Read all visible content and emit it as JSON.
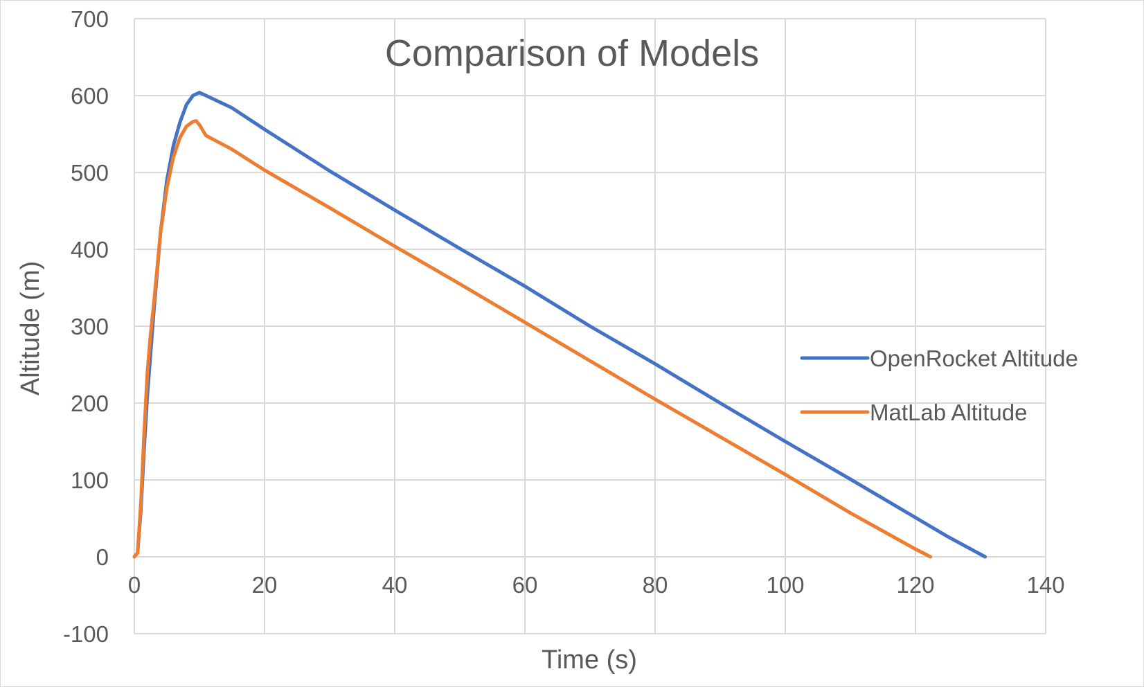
{
  "chart_data": {
    "type": "line",
    "title": "Comparison of Models",
    "xlabel": "Time (s)",
    "ylabel": "Altitude (m)",
    "xlim": [
      0,
      140
    ],
    "ylim": [
      -100,
      700
    ],
    "xticks": [
      0,
      20,
      40,
      60,
      80,
      100,
      120,
      140
    ],
    "yticks": [
      -100,
      0,
      100,
      200,
      300,
      400,
      500,
      600,
      700
    ],
    "grid": true,
    "legend": "right",
    "series": [
      {
        "name": "OpenRocket Altitude",
        "color": "#4472c4",
        "points": [
          [
            0,
            0
          ],
          [
            0.5,
            5
          ],
          [
            1,
            60
          ],
          [
            1.5,
            140
          ],
          [
            2,
            210
          ],
          [
            3,
            320
          ],
          [
            4,
            420
          ],
          [
            5,
            490
          ],
          [
            6,
            535
          ],
          [
            7,
            565
          ],
          [
            8,
            588
          ],
          [
            9,
            600
          ],
          [
            10,
            604
          ],
          [
            11,
            600
          ],
          [
            15,
            584
          ],
          [
            20,
            556
          ],
          [
            30,
            502
          ],
          [
            40,
            451
          ],
          [
            50,
            401
          ],
          [
            60,
            352
          ],
          [
            70,
            300
          ],
          [
            80,
            251
          ],
          [
            90,
            200
          ],
          [
            100,
            150
          ],
          [
            110,
            101
          ],
          [
            120,
            51
          ],
          [
            125,
            26
          ],
          [
            130.7,
            0
          ]
        ]
      },
      {
        "name": "MatLab Altitude",
        "color": "#ed7d31",
        "points": [
          [
            0,
            0
          ],
          [
            0.5,
            5
          ],
          [
            1,
            70
          ],
          [
            1.5,
            160
          ],
          [
            2,
            240
          ],
          [
            2.5,
            290
          ],
          [
            3,
            330
          ],
          [
            4,
            420
          ],
          [
            5,
            480
          ],
          [
            6,
            520
          ],
          [
            7,
            545
          ],
          [
            8,
            560
          ],
          [
            9,
            566
          ],
          [
            9.5,
            567
          ],
          [
            10,
            562
          ],
          [
            10.5,
            555
          ],
          [
            11,
            548
          ],
          [
            15,
            530
          ],
          [
            20,
            503
          ],
          [
            30,
            454
          ],
          [
            40,
            404
          ],
          [
            50,
            355
          ],
          [
            60,
            305
          ],
          [
            70,
            255
          ],
          [
            80,
            205
          ],
          [
            90,
            156
          ],
          [
            100,
            107
          ],
          [
            110,
            57
          ],
          [
            120,
            10
          ],
          [
            122.3,
            0
          ]
        ]
      }
    ]
  }
}
